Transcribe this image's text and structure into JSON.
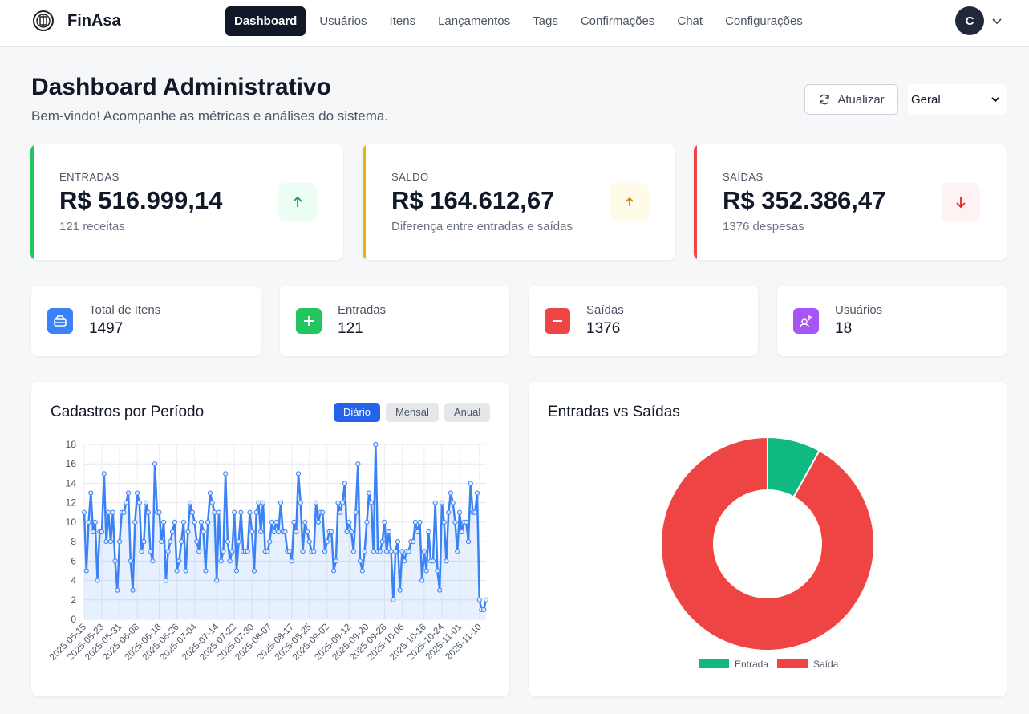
{
  "brand": {
    "name": "FinAsa"
  },
  "nav": {
    "items": [
      {
        "label": "Dashboard"
      },
      {
        "label": "Usuários"
      },
      {
        "label": "Itens"
      },
      {
        "label": "Lançamentos"
      },
      {
        "label": "Tags"
      },
      {
        "label": "Confirmações"
      },
      {
        "label": "Chat"
      },
      {
        "label": "Configurações"
      }
    ],
    "active": "Dashboard",
    "avatar_initial": "C"
  },
  "header": {
    "title": "Dashboard Administrativo",
    "subtitle": "Bem-vindo! Acompanhe as métricas e análises do sistema.",
    "refresh_label": "Atualizar",
    "filter_value": "Geral"
  },
  "summary": {
    "entradas": {
      "label": "ENTRADAS",
      "value": "R$ 516.999,14",
      "note": "121 receitas",
      "color": "#22c55e"
    },
    "saldo": {
      "label": "SALDO",
      "value": "R$ 164.612,67",
      "note": "Diferença entre entradas e saídas",
      "color": "#eab308"
    },
    "saidas": {
      "label": "SAÍDAS",
      "value": "R$ 352.386,47",
      "note": "1376 despesas",
      "color": "#ef4444"
    }
  },
  "stats": {
    "itens": {
      "label": "Total de Itens",
      "value": "1497",
      "color": "#3b82f6"
    },
    "entradas": {
      "label": "Entradas",
      "value": "121",
      "color": "#22c55e"
    },
    "saidas": {
      "label": "Saídas",
      "value": "1376",
      "color": "#ef4444"
    },
    "usuarios": {
      "label": "Usuários",
      "value": "18",
      "color": "#a855f7"
    }
  },
  "line_panel": {
    "title": "Cadastros por Período",
    "tabs": [
      {
        "label": "Diário"
      },
      {
        "label": "Mensal"
      },
      {
        "label": "Anual"
      }
    ],
    "active_tab": "Diário"
  },
  "donut_panel": {
    "title": "Entradas vs Saídas"
  },
  "chart_data": [
    {
      "type": "line",
      "start": "2025-05-15",
      "x_tick_labels": [
        "2025-05-15",
        "2025-05-23",
        "2025-05-31",
        "2025-06-08",
        "2025-06-18",
        "2025-06-26",
        "2025-07-04",
        "2025-07-14",
        "2025-07-22",
        "2025-07-30",
        "2025-08-07",
        "2025-08-17",
        "2025-08-25",
        "2025-09-02",
        "2025-09-12",
        "2025-09-20",
        "2025-09-28",
        "2025-10-06",
        "2025-10-16",
        "2025-10-24",
        "2025-11-01",
        "2025-11-10"
      ],
      "ylim": [
        0,
        18
      ],
      "y_ticks": [
        0,
        2,
        4,
        6,
        8,
        10,
        12,
        14,
        16,
        18
      ],
      "grid": true,
      "color": "#3b82f6",
      "fill": "rgba(59,130,246,0.12)",
      "values": [
        11,
        5,
        10,
        13,
        9,
        10,
        4,
        9,
        9,
        15,
        8,
        11,
        8,
        11,
        6,
        3,
        8,
        11,
        11,
        12,
        13,
        6,
        3,
        10,
        13,
        12,
        7,
        8,
        12,
        11,
        7,
        6,
        16,
        11,
        11,
        8,
        10,
        4,
        7,
        8,
        9,
        10,
        5,
        6,
        8,
        10,
        5,
        9,
        12,
        11,
        10,
        8,
        7,
        10,
        9,
        5,
        10,
        13,
        12,
        11,
        4,
        11,
        6,
        7,
        15,
        8,
        6,
        7,
        11,
        5,
        8,
        11,
        7,
        7,
        7,
        11,
        9,
        5,
        11,
        12,
        9,
        12,
        7,
        7,
        8,
        10,
        9,
        10,
        9,
        12,
        9,
        9,
        7,
        7,
        6,
        10,
        9,
        15,
        12,
        7,
        10,
        9,
        8,
        7,
        7,
        12,
        10,
        11,
        11,
        7,
        8,
        9,
        9,
        5,
        6,
        12,
        11,
        12,
        14,
        9,
        10,
        9,
        7,
        11,
        16,
        6,
        5,
        7,
        10,
        13,
        12,
        7,
        18,
        7,
        7,
        8,
        10,
        7,
        9,
        7,
        2,
        7,
        8,
        3,
        7,
        6,
        7,
        7,
        8,
        8,
        10,
        9,
        10,
        4,
        7,
        5,
        9,
        6,
        6,
        12,
        5,
        3,
        12,
        10,
        6,
        11,
        13,
        12,
        10,
        7,
        11,
        9,
        10,
        10,
        8,
        14,
        11,
        11,
        13,
        2,
        1,
        1,
        2
      ]
    },
    {
      "type": "pie",
      "donut": true,
      "categories": [
        "Entrada",
        "Saída"
      ],
      "values": [
        121,
        1376
      ],
      "colors": [
        "#10b981",
        "#ef4444"
      ],
      "legend": "bottom"
    }
  ]
}
